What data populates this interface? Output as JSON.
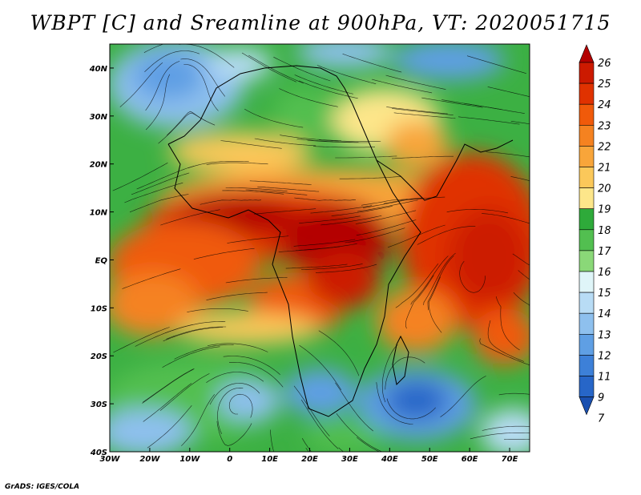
{
  "title": "WBPT [C] and Sreamline at 900hPa, VT: 2020051715",
  "credit": "GrADS: IGES/COLA",
  "map": {
    "lon_ticks": [
      "30W",
      "20W",
      "10W",
      "0",
      "10E",
      "20E",
      "30E",
      "40E",
      "50E",
      "60E",
      "70E"
    ],
    "lat_ticks": [
      "40N",
      "30N",
      "20N",
      "10N",
      "EQ",
      "10S",
      "20S",
      "30S",
      "40S"
    ],
    "lon_range": [
      -30,
      75
    ],
    "lat_range": [
      -40,
      45
    ]
  },
  "colorbar": {
    "labels": [
      "26",
      "25",
      "24",
      "23",
      "22",
      "21",
      "20",
      "19",
      "18",
      "17",
      "16",
      "15",
      "14",
      "13",
      "12",
      "11",
      "9",
      "7"
    ],
    "colors": [
      "#b30000",
      "#cc1a00",
      "#e03200",
      "#f05a0a",
      "#f58220",
      "#f8a53a",
      "#fbc85a",
      "#fde68a",
      "#2eaa3a",
      "#52bf50",
      "#8ad878",
      "#dff5f8",
      "#b8dcf5",
      "#8ec0ee",
      "#5f9fe4",
      "#3d80d8",
      "#2766c8",
      "#1a50b0"
    ]
  },
  "legend_colors": {
    "hot": "#c41a00",
    "warm": "#f5801e",
    "mild": "#fbc85a",
    "green": "#3cb043",
    "cool": "#8ec0ee",
    "cold": "#2766c8"
  }
}
